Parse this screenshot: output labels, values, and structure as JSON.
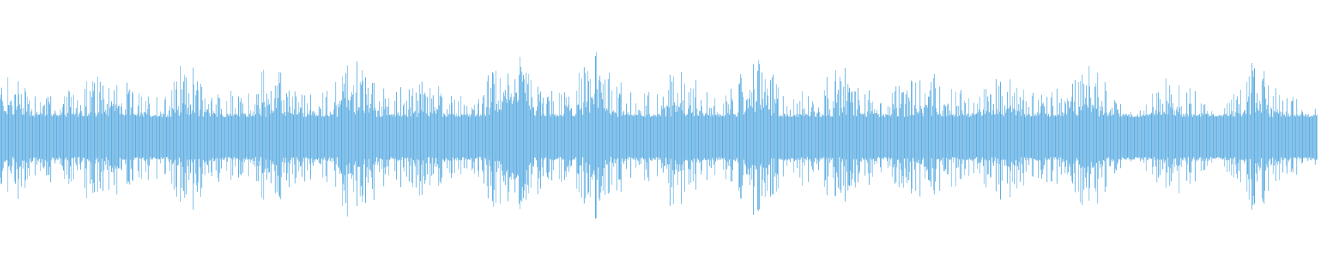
{
  "chart_data": {
    "type": "waveform",
    "title": "",
    "xlabel": "",
    "ylabel": "",
    "axes_visible": false,
    "grid": false,
    "color": "#5dade2",
    "background": "#ffffff",
    "amplitude_range": [
      -1,
      1
    ],
    "envelope_peak": [
      0.5,
      0.52,
      0.4,
      0.33,
      0.45,
      0.55,
      0.42,
      0.32,
      0.4,
      0.6,
      0.45,
      0.35,
      0.33,
      0.58,
      0.45,
      0.33,
      0.4,
      0.67,
      0.5,
      0.35,
      0.45,
      0.5,
      0.38,
      0.3,
      0.55,
      0.72,
      0.45,
      0.32,
      0.45,
      0.7,
      0.45,
      0.32,
      0.4,
      0.62,
      0.4,
      0.3,
      0.5,
      0.7,
      0.35,
      0.38,
      0.45,
      0.55,
      0.42,
      0.35,
      0.42,
      0.58,
      0.4,
      0.38,
      0.45,
      0.5,
      0.38,
      0.35,
      0.45,
      0.6,
      0.42,
      0.17,
      0.35,
      0.56,
      0.4,
      0.18,
      0.35,
      0.6,
      0.42,
      0.3
    ]
  }
}
